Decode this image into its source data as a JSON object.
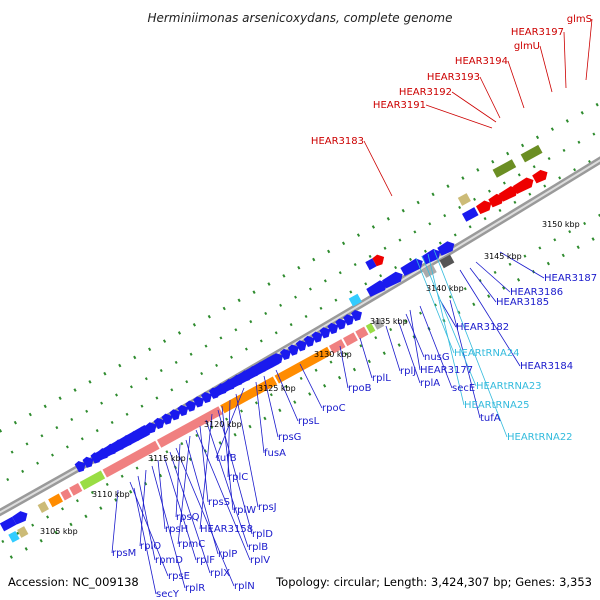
{
  "title": "Herminiimonas arsenicoxydans, complete genome",
  "footer": {
    "accession": "Accession: NC_009138",
    "topology": "Topology: circular; Length: 3,424,307 bp; Genes: 3,353"
  },
  "colors": {
    "backbone": "#9a9a9a",
    "tick": "#2e8b2e",
    "label_blue": "#1a1acc",
    "label_cyan": "#33bbdd",
    "label_red": "#cc0000",
    "gene_blue": "#1a1aee",
    "gene_red": "#ee0000",
    "orange": "#ff8c00",
    "pink": "#f08080",
    "olive": "#6b8e23",
    "gray": "#aaaaaa",
    "darkgray": "#555555",
    "cyan": "#33ccff",
    "lime": "#99dd44",
    "khaki": "#ccbb77"
  },
  "scale_labels": [
    "3105 kbp",
    "3110 kbp",
    "3115 kbp",
    "3120 kbp",
    "3125 kbp",
    "3130 kbp",
    "3135 kbp",
    "3140 kbp",
    "3145 kbp",
    "3150 kbp"
  ],
  "labels_bottom": [
    "secY",
    "rpsM",
    "rpsE",
    "rpmD",
    "rplO",
    "rplR",
    "rpsH",
    "rplF",
    "rplX",
    "rplN",
    "rpsQ",
    "rplP",
    "rpmC",
    "rplV",
    "rpsS",
    "rplB",
    "HEAR3158",
    "rplD",
    "rplW",
    "rplC",
    "rpsJ",
    "tufB",
    "fusA",
    "rpsG",
    "rpsL",
    "rpoC",
    "rpoB",
    "rplL",
    "rplJ",
    "rplA",
    "nusG",
    "secE",
    "HEAR3177",
    "tufA",
    "HEAR3182",
    "HEAR3185",
    "HEAR3186",
    "HEAR3187",
    "HEAR3184"
  ],
  "labels_trna": [
    "HEARtRNA24",
    "HEARtRNA23",
    "HEARtRNA25",
    "HEARtRNA22"
  ],
  "labels_top": [
    "HEAR3183",
    "HEAR3191",
    "HEAR3192",
    "HEAR3193",
    "HEAR3194",
    "glmU",
    "HEAR3197",
    "glmS"
  ]
}
